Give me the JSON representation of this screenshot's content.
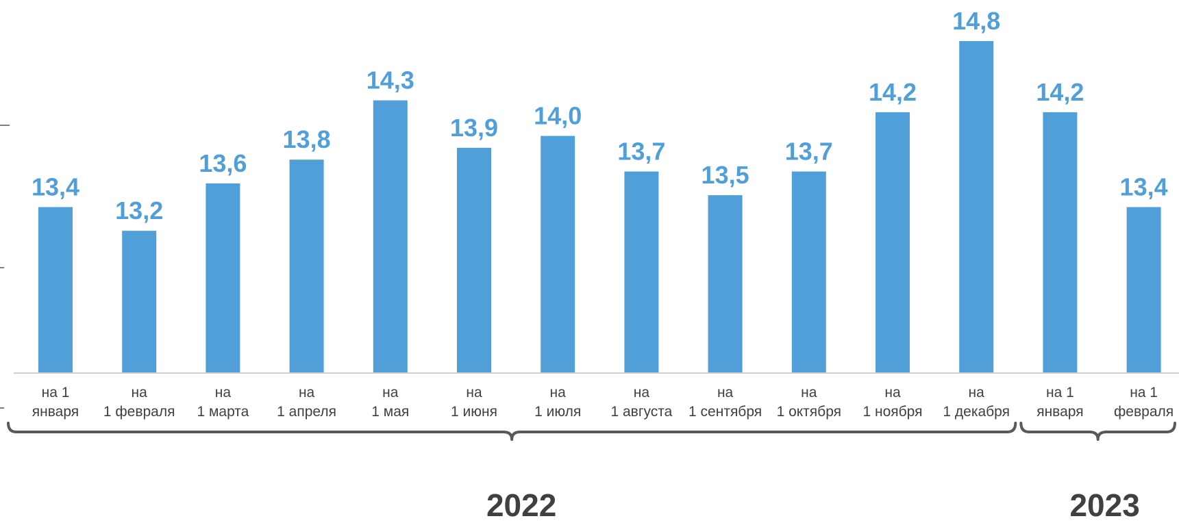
{
  "colors": {
    "bar": "#519FD8",
    "label": "#519FD8",
    "axis": "#d0d0d0",
    "text": "#404040",
    "brace": "#595959"
  },
  "chart_data": {
    "type": "bar",
    "categories": [
      [
        "на 1",
        "января"
      ],
      [
        "на",
        "1 февраля"
      ],
      [
        "на",
        "1 марта"
      ],
      [
        "на",
        "1 апреля"
      ],
      [
        "на",
        "1 мая"
      ],
      [
        "на",
        "1 июня"
      ],
      [
        "на",
        "1 июля"
      ],
      [
        "на",
        "1 августа"
      ],
      [
        "на",
        "1 сентября"
      ],
      [
        "на",
        "1 октября"
      ],
      [
        "на",
        "1 ноября"
      ],
      [
        "на",
        "1 декабря"
      ],
      [
        "на 1",
        "января"
      ],
      [
        "на 1",
        "февраля"
      ]
    ],
    "values": [
      13.4,
      13.2,
      13.6,
      13.8,
      14.3,
      13.9,
      14.0,
      13.7,
      13.5,
      13.7,
      14.2,
      14.8,
      14.2,
      13.4
    ],
    "value_labels": [
      "13,4",
      "13,2",
      "13,6",
      "13,8",
      "14,3",
      "13,9",
      "14,0",
      "13,7",
      "13,5",
      "13,7",
      "14,2",
      "14,8",
      "14,2",
      "13,4"
    ],
    "ylim": [
      12.0,
      14.8
    ],
    "groups": [
      {
        "label": "2022",
        "start": 0,
        "end": 11
      },
      {
        "label": "2023",
        "start": 12,
        "end": 13
      }
    ],
    "grid": false,
    "title": "",
    "xlabel": "",
    "ylabel": ""
  }
}
